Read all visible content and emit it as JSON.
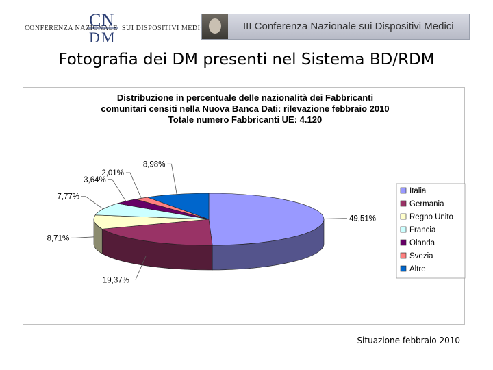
{
  "header": {
    "org_left": "CONFERENZA NAZIONALE",
    "org_right": "SUI DISPOSITIVI MEDICI",
    "logo_letters": "CNDM",
    "banner_text": "III Conferenza Nazionale sui Dispositivi Medici"
  },
  "page_title": "Fotografia dei DM presenti nel Sistema BD/RDM",
  "chart_title_lines": [
    "Distribuzione in percentuale delle nazionalità dei Fabbricanti",
    "comunitari censiti nella Nuova Banca Dati: rilevazione febbraio 2010",
    "Totale numero Fabbricanti UE: 4.120"
  ],
  "chart_data": {
    "type": "pie",
    "title": "Distribuzione in percentuale delle nazionalità dei Fabbricanti comunitari censiti nella Nuova Banca Dati: rilevazione febbraio 2010 Totale numero Fabbricanti UE: 4.120",
    "categories": [
      "Italia",
      "Germania",
      "Regno Unito",
      "Francia",
      "Olanda",
      "Svezia",
      "Altre"
    ],
    "values": [
      49.51,
      19.37,
      8.71,
      7.77,
      3.64,
      2.01,
      8.98
    ],
    "value_labels": [
      "49,51%",
      "19,37%",
      "8,71%",
      "7,77%",
      "3,64%",
      "2,01%",
      "8,98%"
    ],
    "colors": [
      "#9999ff",
      "#993366",
      "#ffffcc",
      "#ccffff",
      "#660066",
      "#ff8080",
      "#0066cc"
    ],
    "style": "3d-pie",
    "legend_position": "right"
  },
  "footer_note": "Situazione febbraio 2010"
}
